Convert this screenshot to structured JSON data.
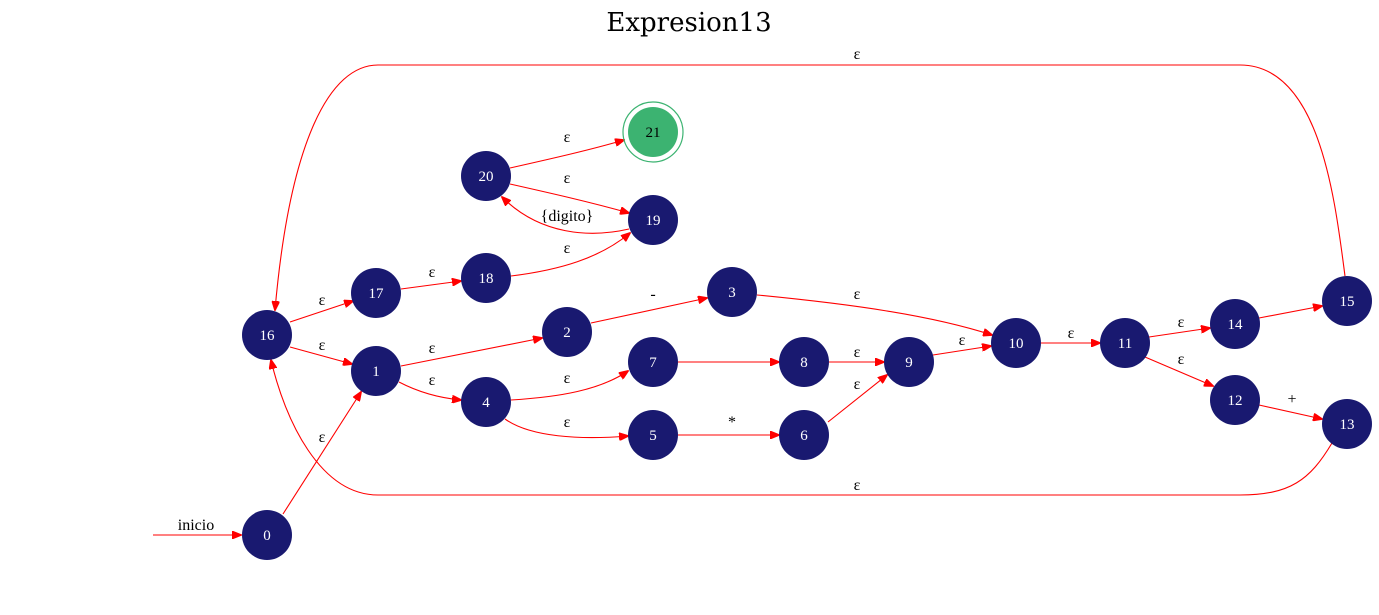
{
  "title": "Expresion13",
  "start_label": "inicio",
  "colors": {
    "node_fill": "#191970",
    "final_fill": "#3cb371",
    "edge": "#ff0000",
    "node_text": "#ffffff"
  },
  "nodes": [
    {
      "id": "0",
      "label": "0"
    },
    {
      "id": "1",
      "label": "1"
    },
    {
      "id": "2",
      "label": "2"
    },
    {
      "id": "3",
      "label": "3"
    },
    {
      "id": "4",
      "label": "4"
    },
    {
      "id": "5",
      "label": "5"
    },
    {
      "id": "6",
      "label": "6"
    },
    {
      "id": "7",
      "label": "7"
    },
    {
      "id": "8",
      "label": "8"
    },
    {
      "id": "9",
      "label": "9"
    },
    {
      "id": "10",
      "label": "10"
    },
    {
      "id": "11",
      "label": "11"
    },
    {
      "id": "12",
      "label": "12"
    },
    {
      "id": "13",
      "label": "13"
    },
    {
      "id": "14",
      "label": "14"
    },
    {
      "id": "15",
      "label": "15"
    },
    {
      "id": "16",
      "label": "16"
    },
    {
      "id": "17",
      "label": "17"
    },
    {
      "id": "18",
      "label": "18"
    },
    {
      "id": "19",
      "label": "19"
    },
    {
      "id": "20",
      "label": "20"
    },
    {
      "id": "21",
      "label": "21",
      "final": true
    }
  ],
  "edges": [
    {
      "from": "0",
      "to": "1",
      "label": "ε"
    },
    {
      "from": "16",
      "to": "17",
      "label": "ε"
    },
    {
      "from": "16",
      "to": "1",
      "label": "ε"
    },
    {
      "from": "17",
      "to": "18",
      "label": "ε"
    },
    {
      "from": "18",
      "to": "19",
      "label": "ε"
    },
    {
      "from": "19",
      "to": "20",
      "label": "{digito}"
    },
    {
      "from": "20",
      "to": "19",
      "label": "ε"
    },
    {
      "from": "20",
      "to": "21",
      "label": "ε"
    },
    {
      "from": "1",
      "to": "2",
      "label": "ε"
    },
    {
      "from": "1",
      "to": "4",
      "label": "ε"
    },
    {
      "from": "2",
      "to": "3",
      "label": "-"
    },
    {
      "from": "3",
      "to": "10",
      "label": "ε"
    },
    {
      "from": "4",
      "to": "7",
      "label": "ε"
    },
    {
      "from": "4",
      "to": "5",
      "label": "ε"
    },
    {
      "from": "7",
      "to": "8",
      "label": ""
    },
    {
      "from": "5",
      "to": "6",
      "label": "*"
    },
    {
      "from": "8",
      "to": "9",
      "label": "ε"
    },
    {
      "from": "6",
      "to": "9",
      "label": "ε"
    },
    {
      "from": "9",
      "to": "10",
      "label": "ε"
    },
    {
      "from": "10",
      "to": "11",
      "label": "ε"
    },
    {
      "from": "11",
      "to": "14",
      "label": "ε"
    },
    {
      "from": "11",
      "to": "12",
      "label": "ε"
    },
    {
      "from": "12",
      "to": "13",
      "label": "+"
    },
    {
      "from": "14",
      "to": "15",
      "label": ""
    },
    {
      "from": "15",
      "to": "16",
      "label": "ε"
    },
    {
      "from": "13",
      "to": "16",
      "label": "ε"
    }
  ]
}
